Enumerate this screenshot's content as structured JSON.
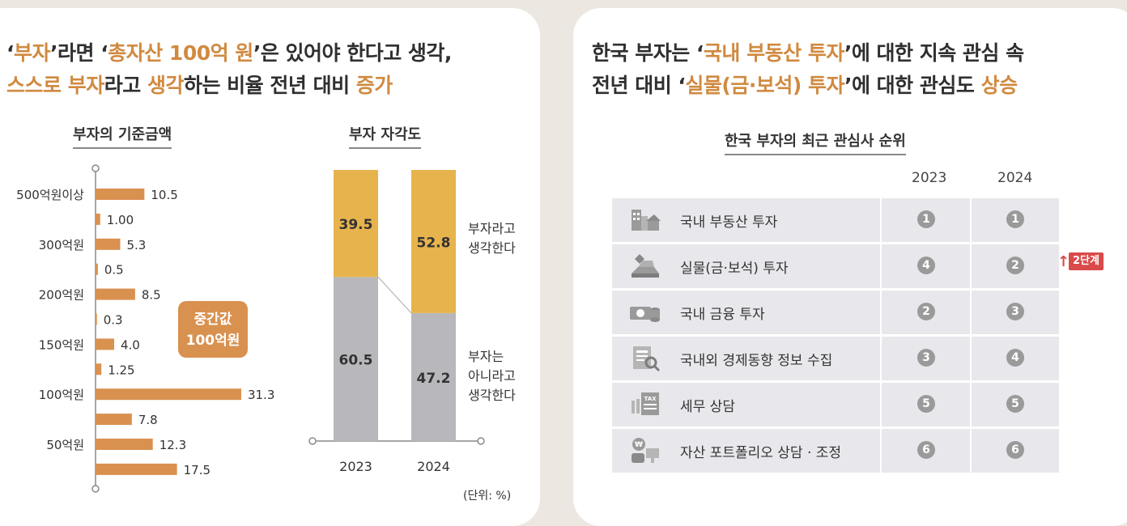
{
  "left": {
    "headline_line1": [
      {
        "t": "‘",
        "h": false
      },
      {
        "t": "부자",
        "h": true
      },
      {
        "t": "’라면 ‘",
        "h": false
      },
      {
        "t": "총자산 100억 원",
        "h": true
      },
      {
        "t": "’은 있어야 한다고 생각,",
        "h": false
      }
    ],
    "headline_line2": [
      {
        "t": "스스로 부자",
        "h": true
      },
      {
        "t": "라고 ",
        "h": false
      },
      {
        "t": "생각",
        "h": true
      },
      {
        "t": "하는 비율 전년 대비 ",
        "h": false
      },
      {
        "t": "증가",
        "h": true
      }
    ]
  },
  "chart_data": [
    {
      "type": "bar",
      "title": "부자의 기준금액",
      "orientation": "horizontal",
      "categories": [
        "500억원이상",
        "",
        "300억원",
        "",
        "200억원",
        "",
        "150억원",
        "",
        "100억원",
        "",
        "50억원",
        ""
      ],
      "values": [
        10.5,
        1.0,
        5.3,
        0.5,
        8.5,
        0.3,
        4.0,
        1.25,
        31.3,
        7.8,
        12.3,
        17.5
      ],
      "value_labels": [
        "10.5",
        "1.00",
        "5.3",
        "0.5",
        "8.5",
        "0.3",
        "4.0",
        "1.25",
        "31.3",
        "7.8",
        "12.3",
        "17.5"
      ],
      "annotation": "중간값\n100억원",
      "bar_color": "#d99150"
    },
    {
      "type": "bar",
      "stacked": true,
      "title": "부자 자각도",
      "categories": [
        "2023",
        "2024"
      ],
      "series": [
        {
          "name": "부자는\n아니라고\n생각한다",
          "values": [
            60.5,
            47.2
          ],
          "color": "#b8b8bc"
        },
        {
          "name": "부자라고\n생각한다",
          "values": [
            39.5,
            52.8
          ],
          "color": "#e7b34c"
        }
      ],
      "ylim": [
        0,
        100
      ],
      "unit_note": "(단위: %)"
    }
  ],
  "right": {
    "headline_line1": [
      {
        "t": "한국 부자는 ‘",
        "h": false
      },
      {
        "t": "국내 부동산 투자",
        "h": true
      },
      {
        "t": "’에 대한 지속 관심 속",
        "h": false
      }
    ],
    "headline_line2": [
      {
        "t": "전년 대비 ‘",
        "h": false
      },
      {
        "t": "실물(금·보석) 투자",
        "h": true
      },
      {
        "t": "’에 대한 관심도 ",
        "h": false
      },
      {
        "t": "상승",
        "h": true
      }
    ],
    "table_title": "한국 부자의 최근 관심사 순위",
    "years": [
      "2023",
      "2024"
    ],
    "rows": [
      {
        "icon": "building-icon",
        "label": "국내 부동산 투자",
        "r2023": "1",
        "r2024": "1"
      },
      {
        "icon": "gold-bar-icon",
        "label": "실물(금·보석) 투자",
        "r2023": "4",
        "r2024": "2"
      },
      {
        "icon": "money-icon",
        "label": "국내 금융 투자",
        "r2023": "2",
        "r2024": "3"
      },
      {
        "icon": "news-icon",
        "label": "국내외 경제동향 정보 수집",
        "r2023": "3",
        "r2024": "4"
      },
      {
        "icon": "tax-icon",
        "label": "세무 상담",
        "r2023": "5",
        "r2024": "5"
      },
      {
        "icon": "advisor-icon",
        "label": "자산 포트폴리오 상담 · 조정",
        "r2023": "6",
        "r2024": "6"
      }
    ],
    "change_badge": "2단계",
    "colors": {
      "accent": "#d08a40",
      "badge": "#d94a4a",
      "row_bg": "#e8e8ec",
      "rank_circle": "#9a9a9a"
    }
  }
}
